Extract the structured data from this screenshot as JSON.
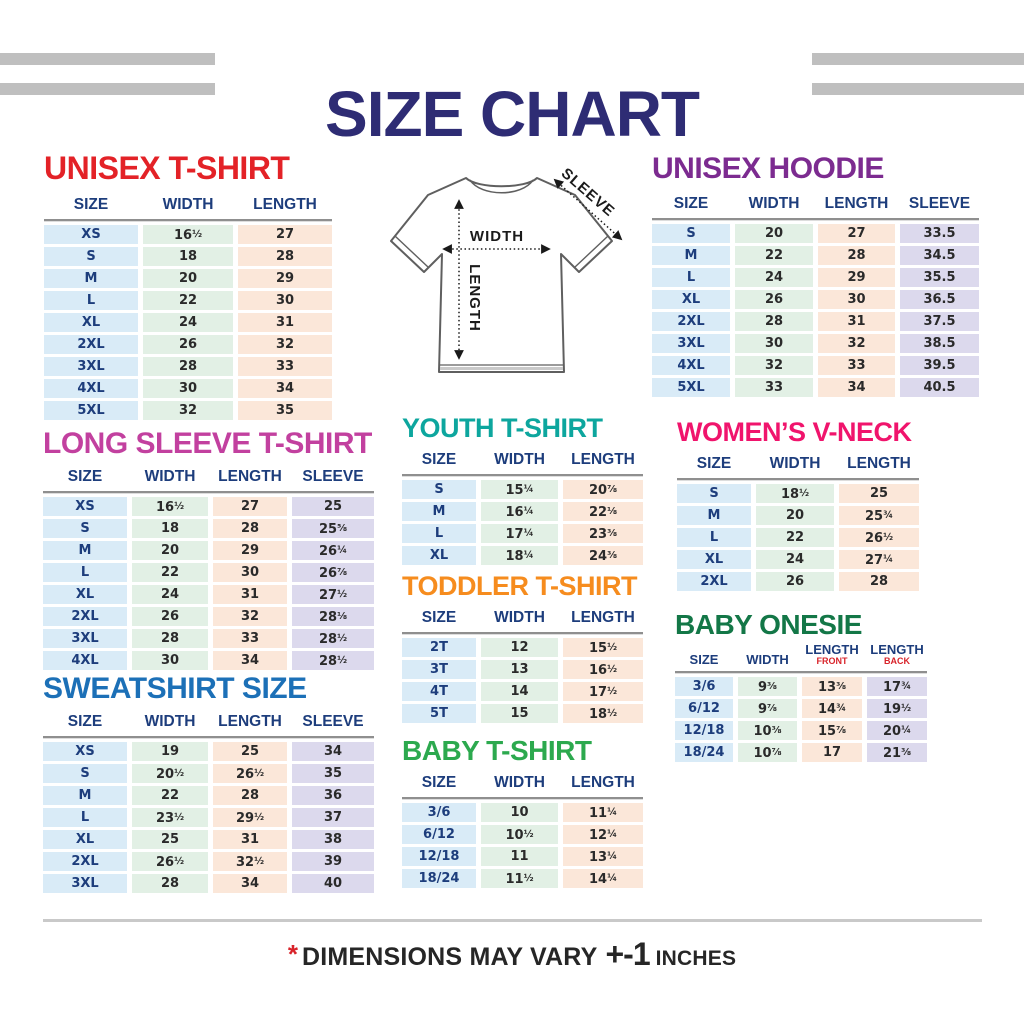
{
  "page": {
    "title": "SIZE CHART"
  },
  "diagram": {
    "width_label": "WIDTH",
    "length_label": "LENGTH",
    "sleeve_label": "SLEEVE"
  },
  "footer": {
    "asterisk": "*",
    "text": "DIMENSIONS MAY VARY",
    "tolerance": "+-1",
    "unit": "INCHES"
  },
  "colors": {
    "title_navy": "#2E2C74",
    "header_navy": "#1D3D7C",
    "value_dark": "#2A2A2A",
    "cell_blue": "#D9EBF7",
    "cell_green": "#E2F0E5",
    "cell_peach": "#FBE7D9",
    "cell_lavender": "#DCD9ED",
    "bar_gray": "#BFBFBF",
    "divider_gray": "#8F8F8F",
    "footnote_red": "#D8232A"
  },
  "tables": {
    "unisex_tshirt": {
      "title": "UNISEX T-SHIRT",
      "title_color": "#E32227",
      "columns": [
        {
          "label": "SIZE",
          "type": "size"
        },
        {
          "label": "WIDTH",
          "type": "width"
        },
        {
          "label": "LENGTH",
          "type": "length"
        }
      ],
      "rows": [
        [
          "XS",
          "16½",
          "27"
        ],
        [
          "S",
          "18",
          "28"
        ],
        [
          "M",
          "20",
          "29"
        ],
        [
          "L",
          "22",
          "30"
        ],
        [
          "XL",
          "24",
          "31"
        ],
        [
          "2XL",
          "26",
          "32"
        ],
        [
          "3XL",
          "28",
          "33"
        ],
        [
          "4XL",
          "30",
          "34"
        ],
        [
          "5XL",
          "32",
          "35"
        ]
      ]
    },
    "long_sleeve": {
      "title": "LONG SLEEVE T-SHIRT",
      "title_color": "#C2409F",
      "columns": [
        {
          "label": "SIZE",
          "type": "size"
        },
        {
          "label": "WIDTH",
          "type": "width"
        },
        {
          "label": "LENGTH",
          "type": "length"
        },
        {
          "label": "SLEEVE",
          "type": "sleeve"
        }
      ],
      "rows": [
        [
          "XS",
          "16½",
          "27",
          "25"
        ],
        [
          "S",
          "18",
          "28",
          "25⅝"
        ],
        [
          "M",
          "20",
          "29",
          "26¼"
        ],
        [
          "L",
          "22",
          "30",
          "26⅞"
        ],
        [
          "XL",
          "24",
          "31",
          "27½"
        ],
        [
          "2XL",
          "26",
          "32",
          "28⅛"
        ],
        [
          "3XL",
          "28",
          "33",
          "28½"
        ],
        [
          "4XL",
          "30",
          "34",
          "28½"
        ]
      ]
    },
    "sweatshirt": {
      "title": "SWEATSHIRT SIZE",
      "title_color": "#1C70B7",
      "columns": [
        {
          "label": "SIZE",
          "type": "size"
        },
        {
          "label": "WIDTH",
          "type": "width"
        },
        {
          "label": "LENGTH",
          "type": "length"
        },
        {
          "label": "SLEEVE",
          "type": "sleeve"
        }
      ],
      "rows": [
        [
          "XS",
          "19",
          "25",
          "34"
        ],
        [
          "S",
          "20½",
          "26½",
          "35"
        ],
        [
          "M",
          "22",
          "28",
          "36"
        ],
        [
          "L",
          "23½",
          "29½",
          "37"
        ],
        [
          "XL",
          "25",
          "31",
          "38"
        ],
        [
          "2XL",
          "26½",
          "32½",
          "39"
        ],
        [
          "3XL",
          "28",
          "34",
          "40"
        ]
      ]
    },
    "youth": {
      "title": "YOUTH T-SHIRT",
      "title_color": "#0DA69E",
      "columns": [
        {
          "label": "SIZE",
          "type": "size"
        },
        {
          "label": "WIDTH",
          "type": "width"
        },
        {
          "label": "LENGTH",
          "type": "length"
        }
      ],
      "rows": [
        [
          "S",
          "15¼",
          "20⅞"
        ],
        [
          "M",
          "16¼",
          "22⅛"
        ],
        [
          "L",
          "17¼",
          "23⅜"
        ],
        [
          "XL",
          "18¼",
          "24⅜"
        ]
      ]
    },
    "toddler": {
      "title": "TODDLER T-SHIRT",
      "title_color": "#F68C1E",
      "columns": [
        {
          "label": "SIZE",
          "type": "size"
        },
        {
          "label": "WIDTH",
          "type": "width"
        },
        {
          "label": "LENGTH",
          "type": "length"
        }
      ],
      "rows": [
        [
          "2T",
          "12",
          "15½"
        ],
        [
          "3T",
          "13",
          "16½"
        ],
        [
          "4T",
          "14",
          "17½"
        ],
        [
          "5T",
          "15",
          "18½"
        ]
      ]
    },
    "baby_tshirt": {
      "title": "BABY T-SHIRT",
      "title_color": "#2CA94E",
      "columns": [
        {
          "label": "SIZE",
          "type": "size"
        },
        {
          "label": "WIDTH",
          "type": "width"
        },
        {
          "label": "LENGTH",
          "type": "length"
        }
      ],
      "rows": [
        [
          "3/6",
          "10",
          "11¼"
        ],
        [
          "6/12",
          "10½",
          "12¼"
        ],
        [
          "12/18",
          "11",
          "13¼"
        ],
        [
          "18/24",
          "11½",
          "14¼"
        ]
      ]
    },
    "unisex_hoodie": {
      "title": "UNISEX HOODIE",
      "title_color": "#7C2B90",
      "columns": [
        {
          "label": "SIZE",
          "type": "size"
        },
        {
          "label": "WIDTH",
          "type": "width"
        },
        {
          "label": "LENGTH",
          "type": "length"
        },
        {
          "label": "SLEEVE",
          "type": "sleeve"
        }
      ],
      "rows": [
        [
          "S",
          "20",
          "27",
          "33.5"
        ],
        [
          "M",
          "22",
          "28",
          "34.5"
        ],
        [
          "L",
          "24",
          "29",
          "35.5"
        ],
        [
          "XL",
          "26",
          "30",
          "36.5"
        ],
        [
          "2XL",
          "28",
          "31",
          "37.5"
        ],
        [
          "3XL",
          "30",
          "32",
          "38.5"
        ],
        [
          "4XL",
          "32",
          "33",
          "39.5"
        ],
        [
          "5XL",
          "33",
          "34",
          "40.5"
        ]
      ]
    },
    "womens_vneck": {
      "title": "WOMEN’S V-NECK",
      "title_color": "#F0146C",
      "columns": [
        {
          "label": "SIZE",
          "type": "size"
        },
        {
          "label": "WIDTH",
          "type": "width"
        },
        {
          "label": "LENGTH",
          "type": "length"
        }
      ],
      "rows": [
        [
          "S",
          "18½",
          "25"
        ],
        [
          "M",
          "20",
          "25¾"
        ],
        [
          "L",
          "22",
          "26½"
        ],
        [
          "XL",
          "24",
          "27¼"
        ],
        [
          "2XL",
          "26",
          "28"
        ]
      ]
    },
    "baby_onesie": {
      "title": "BABY ONESIE",
      "title_color": "#137747",
      "small_header": true,
      "columns": [
        {
          "label": "SIZE",
          "type": "size"
        },
        {
          "label": "WIDTH",
          "type": "width"
        },
        {
          "label": "LENGTH",
          "sub": "FRONT",
          "type": "length"
        },
        {
          "label": "LENGTH",
          "sub": "BACK",
          "type": "sleeve"
        }
      ],
      "rows": [
        [
          "3/6",
          "9⅜",
          "13⅜",
          "17¾"
        ],
        [
          "6/12",
          "9⅞",
          "14¾",
          "19½"
        ],
        [
          "12/18",
          "10⅜",
          "15⅞",
          "20¼"
        ],
        [
          "18/24",
          "10⅞",
          "17",
          "21⅜"
        ]
      ]
    }
  }
}
